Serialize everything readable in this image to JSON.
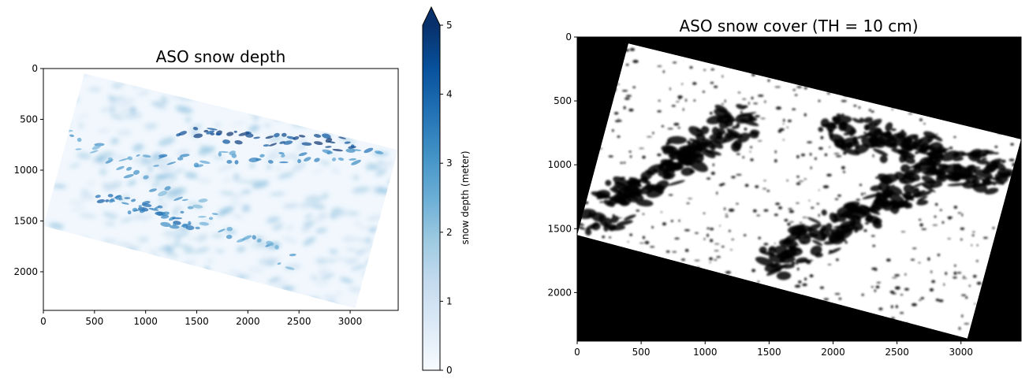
{
  "chart_data": [
    {
      "type": "heatmap",
      "title": "ASO snow depth",
      "colormap": "Blues",
      "x_ticks": [
        0,
        500,
        1000,
        1500,
        2000,
        2500,
        3000
      ],
      "y_ticks": [
        0,
        500,
        1000,
        1500,
        2000
      ],
      "xlim": [
        0,
        3470
      ],
      "ylim": [
        2380,
        0
      ],
      "colorbar": {
        "label": "snow depth (meter)",
        "ticks": [
          0,
          1,
          2,
          3,
          4,
          5
        ],
        "range": [
          0,
          5
        ],
        "extend": "max"
      },
      "data_region_corners": [
        [
          0,
          1550
        ],
        [
          400,
          50
        ],
        [
          3470,
          800
        ],
        [
          3050,
          2360
        ]
      ],
      "high_depth_bands": [
        {
          "from": [
            250,
            650
          ],
          "to": [
            2500,
            1950
          ],
          "value": 2.5
        },
        {
          "from": [
            900,
            900
          ],
          "to": [
            3400,
            850
          ],
          "value": 3.0
        },
        {
          "from": [
            600,
            1250
          ],
          "to": [
            1500,
            1550
          ],
          "value": 3.5
        },
        {
          "from": [
            1400,
            650
          ],
          "to": [
            3100,
            750
          ],
          "value": 4.5
        }
      ]
    },
    {
      "type": "heatmap",
      "title": "ASO snow cover (TH = 10 cm)",
      "colormap": "gray",
      "x_ticks": [
        0,
        500,
        1000,
        1500,
        2000,
        2500,
        3000
      ],
      "y_ticks": [
        0,
        500,
        1000,
        1500,
        2000
      ],
      "xlim": [
        0,
        3470
      ],
      "ylim": [
        2380,
        0
      ],
      "data_region_corners": [
        [
          0,
          1550
        ],
        [
          400,
          50
        ],
        [
          3470,
          800
        ],
        [
          3050,
          2360
        ]
      ],
      "no_snow_bands": [
        {
          "from": [
            100,
            1450
          ],
          "to": [
            1350,
            600
          ],
          "value": 0
        },
        {
          "from": [
            1500,
            1750
          ],
          "to": [
            2900,
            1050
          ],
          "value": 0
        },
        {
          "from": [
            2000,
            700
          ],
          "to": [
            3350,
            1100
          ],
          "value": 0
        }
      ]
    }
  ]
}
